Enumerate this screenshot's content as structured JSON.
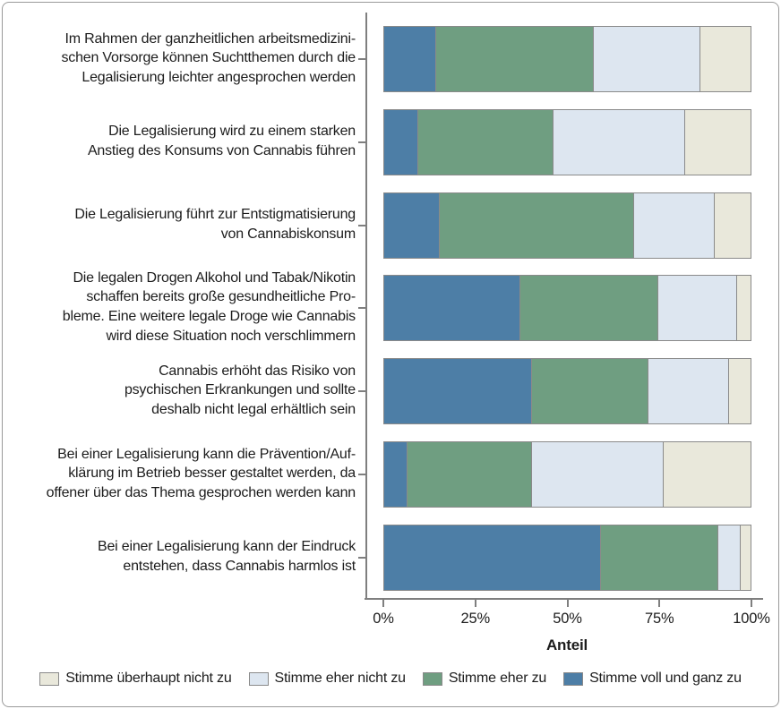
{
  "figure": {
    "background": "#ffffff",
    "frame_border_color": "#9a9a9a",
    "axis_color": "#7f7f7f",
    "text_color": "#1c1c1c"
  },
  "chart_data": {
    "type": "bar",
    "orientation": "horizontal",
    "stacked": true,
    "unit": "%",
    "title": "",
    "xlabel": "Anteil",
    "xlim": [
      0,
      100
    ],
    "x_ticks": [
      0,
      25,
      50,
      75,
      100
    ],
    "x_tick_labels": [
      "0%",
      "25%",
      "50%",
      "75%",
      "100%"
    ],
    "grid": false,
    "legend_position": "bottom",
    "categories": [
      "Im Rahmen der ganzheitlichen arbeitsmedizinischen Vorsorge können Suchtthemen durch die Legalisierung leichter angesprochen werden",
      "Die Legalisierung wird zu einem starken Anstieg des Konsums von Cannabis führen",
      "Die Legalisierung führt zur Entstigmatisierung von Cannabiskonsum",
      "Die legalen Drogen Alkohol und Tabak/Nikotin schaffen bereits große gesundheitliche Probleme. Eine weitere legale Droge wie Cannabis wird diese Situation noch verschlimmern",
      "Cannabis erhöht das Risiko von psychischen Erkrankungen und sollte deshalb nicht legal erhältlich sein",
      "Bei einer Legalisierung kann die Prävention/Aufklärung im Betrieb besser gestaltet werden, da offener über das Thema gesprochen werden kann",
      "Bei einer Legalisierung kann der Eindruck entstehen, dass Cannabis harmlos ist"
    ],
    "category_label_lines": [
      [
        "Im Rahmen der ganzheitlichen arbeitsmedizini-",
        "schen Vorsorge können Suchtthemen durch die",
        "Legalisierung leichter angesprochen werden"
      ],
      [
        "Die Legalisierung wird zu einem starken",
        "Anstieg des Konsums von Cannabis führen"
      ],
      [
        "Die Legalisierung führt zur Entstigmatisierung",
        "von Cannabiskonsum"
      ],
      [
        "Die legalen Drogen Alkohol und Tabak/Nikotin",
        "schaffen bereits große gesundheitliche Pro-",
        "bleme. Eine weitere legale Droge wie Cannabis",
        "wird diese Situation noch verschlimmern"
      ],
      [
        "Cannabis erhöht das Risiko von",
        "psychischen Erkrankungen und sollte",
        "deshalb nicht legal erhältlich sein"
      ],
      [
        "Bei einer Legalisierung kann die Prävention/Auf-",
        "klärung im Betrieb besser gestaltet werden, da",
        "offener über das Thema gesprochen werden kann"
      ],
      [
        "Bei einer Legalisierung kann der Eindruck",
        "entstehen, dass Cannabis harmlos ist"
      ]
    ],
    "series": [
      {
        "name": "Stimme voll und ganz zu",
        "color": "#4d7ea6",
        "values": [
          14,
          9,
          15,
          37,
          40,
          6,
          59
        ]
      },
      {
        "name": "Stimme eher zu",
        "color": "#6f9e81",
        "values": [
          43,
          37,
          53,
          37.5,
          32,
          34,
          32
        ]
      },
      {
        "name": "Stimme eher nicht zu",
        "color": "#dde6f0",
        "values": [
          29,
          36,
          22,
          21.5,
          22,
          36,
          6
        ]
      },
      {
        "name": "Stimme überhaupt nicht zu",
        "color": "#e9e8db",
        "values": [
          14,
          18,
          10,
          4,
          6,
          24,
          3
        ]
      }
    ],
    "legend_order": [
      "Stimme überhaupt nicht zu",
      "Stimme eher nicht zu",
      "Stimme eher zu",
      "Stimme voll und ganz zu"
    ]
  }
}
